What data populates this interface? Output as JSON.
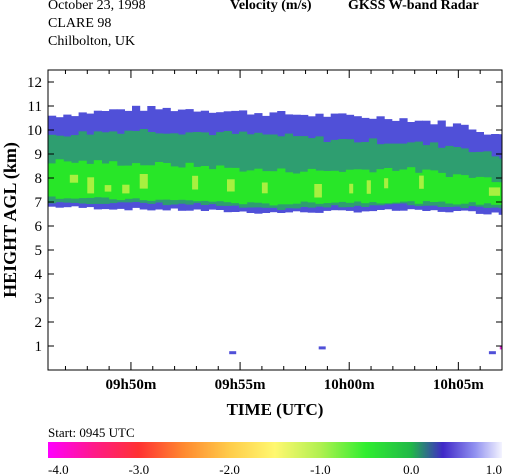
{
  "header": {
    "date": "October  23, 1998",
    "campaign": "CLARE 98",
    "site": "Chilbolton, UK",
    "quantity": "Velocity (m/s)",
    "instrument": "GKSS  W-band Radar"
  },
  "start_label": "Start: 0945 UTC",
  "chart_data": {
    "type": "heatmap",
    "title": "Velocity (m/s)",
    "xlabel": "TIME (UTC)",
    "ylabel": "HEIGHT AGL (km)",
    "x_ticks": [
      "09h50m",
      "09h55m",
      "10h00m",
      "10h05m"
    ],
    "x_tick_minutes": [
      50,
      55,
      60,
      65
    ],
    "xlim_minutes": [
      46.2,
      67.0
    ],
    "y_ticks": [
      "1",
      "2",
      "3",
      "4",
      "5",
      "6",
      "7",
      "8",
      "9",
      "10",
      "11",
      "12"
    ],
    "ylim": [
      0,
      12.5
    ],
    "grid": false,
    "colorbar": {
      "min": -4.0,
      "max": 1.0,
      "tick_labels": [
        "-4.0",
        "-3.0",
        "-2.0",
        "-1.0",
        "0.0",
        "1.0"
      ],
      "tick_values": [
        -4,
        -3,
        -2,
        -1,
        0,
        1
      ]
    },
    "colors": {
      "blue": "#5050d8",
      "teal": "#2e9e70",
      "green": "#28e628",
      "yellowgreen": "#a8f040",
      "magenta": "#e02ad8"
    },
    "layers_km": [
      {
        "name": "upper",
        "value": 0.3,
        "color": "#5050d8",
        "time_min": [
          46.2,
          50,
          53,
          56,
          59,
          62,
          65,
          67
        ],
        "top": [
          10.6,
          10.9,
          10.85,
          10.7,
          10.6,
          10.5,
          10.2,
          9.7
        ],
        "bottom": [
          6.8,
          6.7,
          6.65,
          6.55,
          6.6,
          6.65,
          6.6,
          6.5
        ]
      },
      {
        "name": "middle",
        "value": -0.3,
        "color": "#2e9e70",
        "time_min": [
          46.2,
          50,
          53,
          56,
          59,
          62,
          65,
          67
        ],
        "top": [
          9.8,
          10.0,
          9.9,
          9.8,
          9.6,
          9.5,
          9.3,
          8.8
        ],
        "bottom": [
          7.0,
          6.95,
          6.9,
          6.7,
          6.8,
          6.9,
          6.8,
          6.8
        ]
      },
      {
        "name": "core",
        "value": -1.0,
        "color": "#28e628",
        "time_min": [
          46.2,
          50,
          53,
          56,
          59,
          62,
          65,
          67
        ],
        "top": [
          8.7,
          8.6,
          8.5,
          8.3,
          8.3,
          8.4,
          8.1,
          7.9
        ],
        "bottom": [
          7.2,
          7.1,
          7.05,
          6.9,
          7.0,
          7.0,
          6.95,
          6.9
        ]
      }
    ],
    "low_echoes": [
      {
        "t": 54.5,
        "h": 0.7
      },
      {
        "t": 58.6,
        "h": 0.9
      },
      {
        "t": 66.4,
        "h": 0.7
      },
      {
        "t": 66.9,
        "h": 0.9
      }
    ]
  }
}
